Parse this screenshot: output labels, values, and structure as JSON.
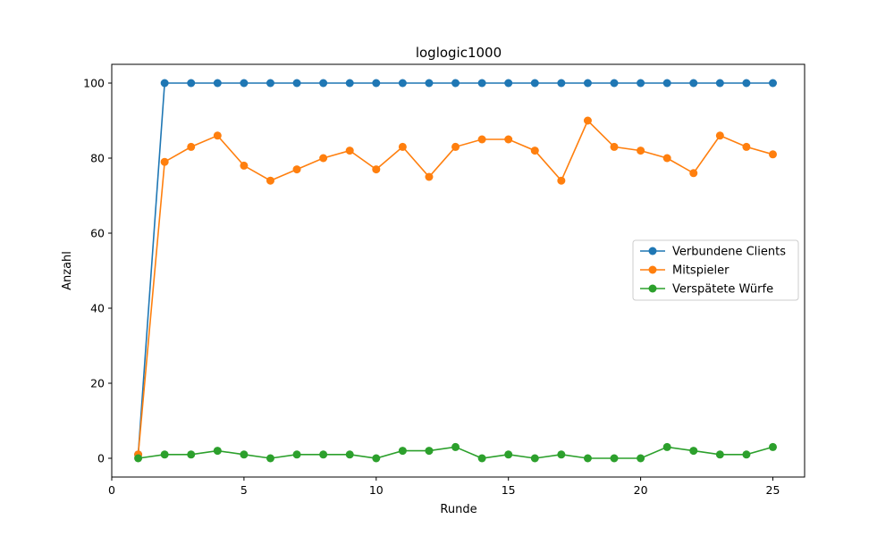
{
  "chart_data": {
    "type": "line",
    "title": "loglogic1000",
    "xlabel": "Runde",
    "ylabel": "Anzahl",
    "xlim": [
      0,
      26.2
    ],
    "ylim": [
      -5,
      105
    ],
    "x_ticks": [
      0,
      5,
      10,
      15,
      20,
      25
    ],
    "y_ticks": [
      0,
      20,
      40,
      60,
      80,
      100
    ],
    "grid": false,
    "legend_position": "center-right",
    "x": [
      1,
      2,
      3,
      4,
      5,
      6,
      7,
      8,
      9,
      10,
      11,
      12,
      13,
      14,
      15,
      16,
      17,
      18,
      19,
      20,
      21,
      22,
      23,
      24,
      25
    ],
    "series": [
      {
        "name": "Verbundene Clients",
        "color": "#1f77b4",
        "values": [
          1,
          100,
          100,
          100,
          100,
          100,
          100,
          100,
          100,
          100,
          100,
          100,
          100,
          100,
          100,
          100,
          100,
          100,
          100,
          100,
          100,
          100,
          100,
          100,
          100
        ]
      },
      {
        "name": "Mitspieler",
        "color": "#ff7f0e",
        "values": [
          1,
          79,
          83,
          86,
          78,
          74,
          77,
          80,
          82,
          77,
          83,
          75,
          83,
          85,
          85,
          82,
          74,
          90,
          83,
          82,
          80,
          76,
          86,
          83,
          81
        ]
      },
      {
        "name": "Verspätete Würfe",
        "color": "#2ca02c",
        "values": [
          0,
          1,
          1,
          2,
          1,
          0,
          1,
          1,
          1,
          0,
          2,
          2,
          3,
          0,
          1,
          0,
          1,
          0,
          0,
          0,
          3,
          2,
          1,
          1,
          3
        ]
      }
    ]
  }
}
